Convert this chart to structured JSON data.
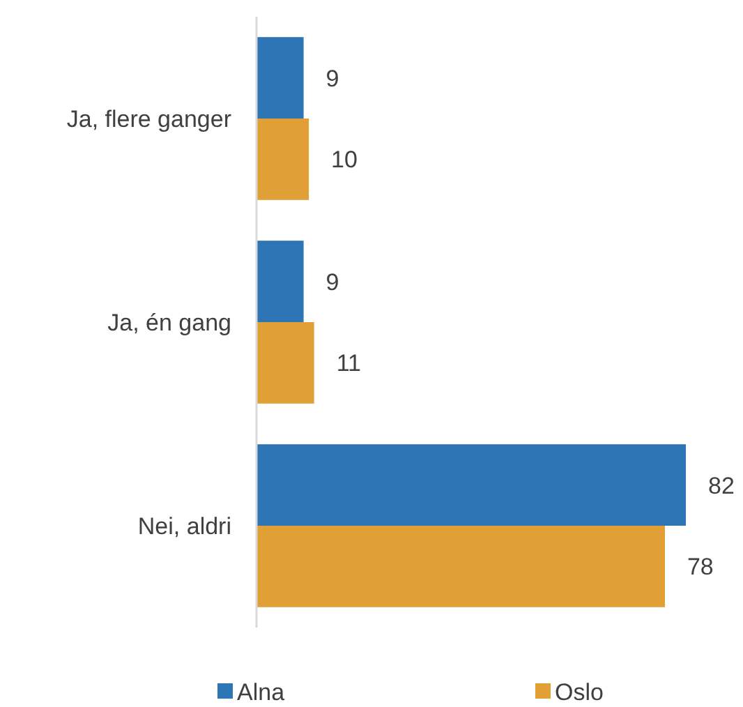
{
  "chart_data": {
    "type": "bar",
    "orientation": "horizontal",
    "categories": [
      "Ja, flere ganger",
      "Ja, én gang",
      "Nei, aldri"
    ],
    "series": [
      {
        "name": "Alna",
        "color": "#2e75b6",
        "values": [
          9,
          9,
          82
        ]
      },
      {
        "name": "Oslo",
        "color": "#e0a035",
        "values": [
          10,
          11,
          78
        ]
      }
    ],
    "data_labels": true,
    "legend": "bottom"
  }
}
